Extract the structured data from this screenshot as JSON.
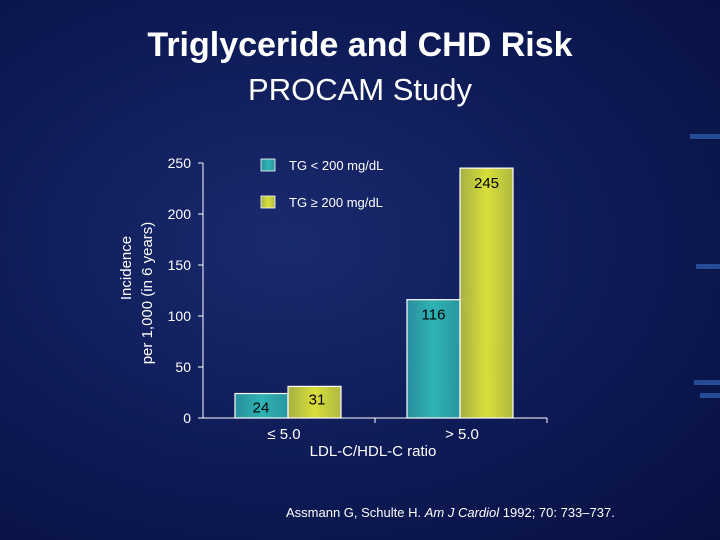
{
  "slide": {
    "title": "Triglyceride and CHD Risk",
    "subtitle": "PROCAM Study",
    "citation_authors": "Assmann G, Schulte H. ",
    "citation_journal": "Am J Cardiol",
    "citation_rest": " 1992; 70: 733–737."
  },
  "chart_data": {
    "type": "bar",
    "categories": [
      "≤ 5.0",
      "> 5.0"
    ],
    "series": [
      {
        "name": "TG < 200 mg/dL",
        "values": [
          24,
          116
        ],
        "color": "#2fb3b3"
      },
      {
        "name": "TG ≥ 200 mg/dL",
        "values": [
          31,
          245
        ],
        "color": "#d8df3a"
      }
    ],
    "ylabel_line1": "Incidence",
    "ylabel_line2": "per 1,000 (in 6 years)",
    "xlabel": "LDL-C/HDL-C ratio",
    "ylim": [
      0,
      250
    ],
    "yticks": [
      "0",
      "50",
      "100",
      "150",
      "200",
      "250"
    ],
    "legend_position": "top-center"
  }
}
